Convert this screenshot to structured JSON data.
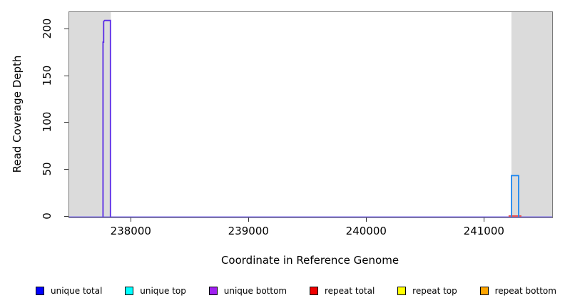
{
  "chart_data": {
    "type": "line",
    "title": "",
    "xlabel": "Coordinate in Reference Genome",
    "ylabel": "Read Coverage Depth",
    "xlim": [
      237471,
      241574
    ],
    "ylim": [
      -0.5,
      217.9
    ],
    "xticks": [
      238000,
      239000,
      240000,
      241000
    ],
    "yticks": [
      0,
      50,
      100,
      150,
      200
    ],
    "grid": false,
    "legend_position": "bottom",
    "shade_color": "#dbdbdb",
    "shaded_regions": [
      {
        "name": "left-flank",
        "x0": 237471,
        "x1": 237825
      },
      {
        "name": "right-flank",
        "x0": 241228,
        "x1": 241574
      }
    ],
    "lines": [
      {
        "name": "zero-coverage-baseline",
        "color": "#7f6fe8",
        "width": 1.6,
        "points": [
          [
            237471,
            0
          ],
          [
            241574,
            0
          ]
        ]
      },
      {
        "name": "repeat-total-segment",
        "color": "#e85050",
        "width": 2,
        "points": [
          [
            241204,
            1
          ],
          [
            241313,
            1
          ]
        ]
      },
      {
        "name": "unique-bottom-spike",
        "color": "#5a2be6",
        "width": 1.8,
        "points": [
          [
            237758,
            0
          ],
          [
            237758,
            186
          ],
          [
            237764,
            186
          ],
          [
            237764,
            208
          ],
          [
            237772,
            209
          ],
          [
            237821,
            209
          ],
          [
            237821,
            0
          ]
        ]
      },
      {
        "name": "unique-top-spike",
        "color": "#1e87f0",
        "width": 1.8,
        "points": [
          [
            241228,
            0
          ],
          [
            241228,
            44
          ],
          [
            241289,
            44
          ],
          [
            241289,
            0
          ]
        ]
      }
    ],
    "legend": [
      {
        "label": "unique total",
        "color": "#0000ff"
      },
      {
        "label": "unique top",
        "color": "#00ffff"
      },
      {
        "label": "unique bottom",
        "color": "#a020f0"
      },
      {
        "label": "repeat total",
        "color": "#f00000"
      },
      {
        "label": "repeat top",
        "color": "#ffff00"
      },
      {
        "label": "repeat bottom",
        "color": "#ffa500"
      }
    ]
  }
}
